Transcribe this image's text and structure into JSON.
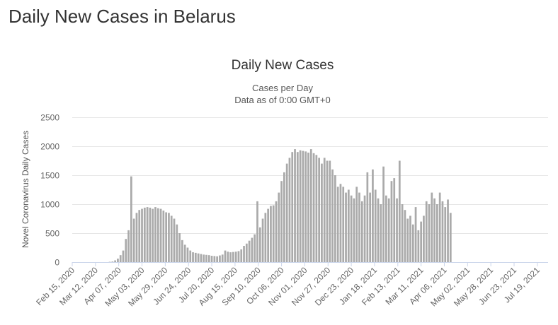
{
  "page": {
    "heading": "Daily New Cases in Belarus"
  },
  "chart_data": {
    "type": "bar",
    "title": "Daily New Cases",
    "subtitle_lines": [
      "Cases per Day",
      "Data as of 0:00 GMT+0"
    ],
    "ylabel": "Novel Coronavirus Daily Cases",
    "xlabel": "",
    "ylim": [
      0,
      2500
    ],
    "yticks": [
      0,
      500,
      1000,
      1500,
      2000,
      2500
    ],
    "grid": true,
    "legend": "none",
    "bar_color": "#aaaaaa",
    "x_start_date": "2020-02-15",
    "x_end_date": "2021-07-31",
    "x_tick_labels": [
      "Feb 15, 2020",
      "Mar 12, 2020",
      "Apr 07, 2020",
      "May 03, 2020",
      "May 29, 2020",
      "Jun 24, 2020",
      "Jul 20, 2020",
      "Aug 15, 2020",
      "Sep 10, 2020",
      "Oct 06, 2020",
      "Nov 01, 2020",
      "Nov 27, 2020",
      "Dec 23, 2020",
      "Jan 18, 2021",
      "Feb 13, 2021",
      "Mar 11, 2021",
      "Apr 06, 2021",
      "May 02, 2021",
      "May 28, 2021",
      "Jun 23, 2021",
      "Jul 19, 2021"
    ],
    "series": [
      {
        "name": "Daily Cases",
        "x_step_days": 3,
        "values": [
          0,
          0,
          0,
          0,
          0,
          0,
          0,
          0,
          0,
          0,
          0,
          0,
          0,
          0,
          5,
          10,
          30,
          60,
          120,
          200,
          400,
          550,
          1480,
          750,
          850,
          900,
          920,
          940,
          950,
          940,
          920,
          950,
          930,
          920,
          890,
          860,
          850,
          800,
          750,
          650,
          500,
          380,
          300,
          250,
          200,
          170,
          160,
          150,
          140,
          130,
          125,
          120,
          110,
          105,
          100,
          115,
          130,
          200,
          180,
          170,
          175,
          180,
          190,
          220,
          280,
          320,
          370,
          420,
          480,
          1050,
          600,
          750,
          850,
          920,
          970,
          980,
          1050,
          1200,
          1400,
          1550,
          1700,
          1800,
          1900,
          1950,
          1900,
          1930,
          1920,
          1910,
          1890,
          1950,
          1880,
          1850,
          1800,
          1700,
          1800,
          1750,
          1750,
          1600,
          1500,
          1300,
          1350,
          1300,
          1200,
          1250,
          1150,
          1100,
          1300,
          1200,
          1050,
          1150,
          1550,
          1200,
          1600,
          1250,
          1100,
          1000,
          1650,
          1150,
          1100,
          1400,
          1450,
          1100,
          1750,
          1000,
          900,
          750,
          800,
          650,
          950,
          550,
          700,
          800,
          1050,
          1000,
          1200,
          1100,
          1000,
          1200,
          1050,
          950,
          1080,
          850
        ]
      }
    ]
  }
}
